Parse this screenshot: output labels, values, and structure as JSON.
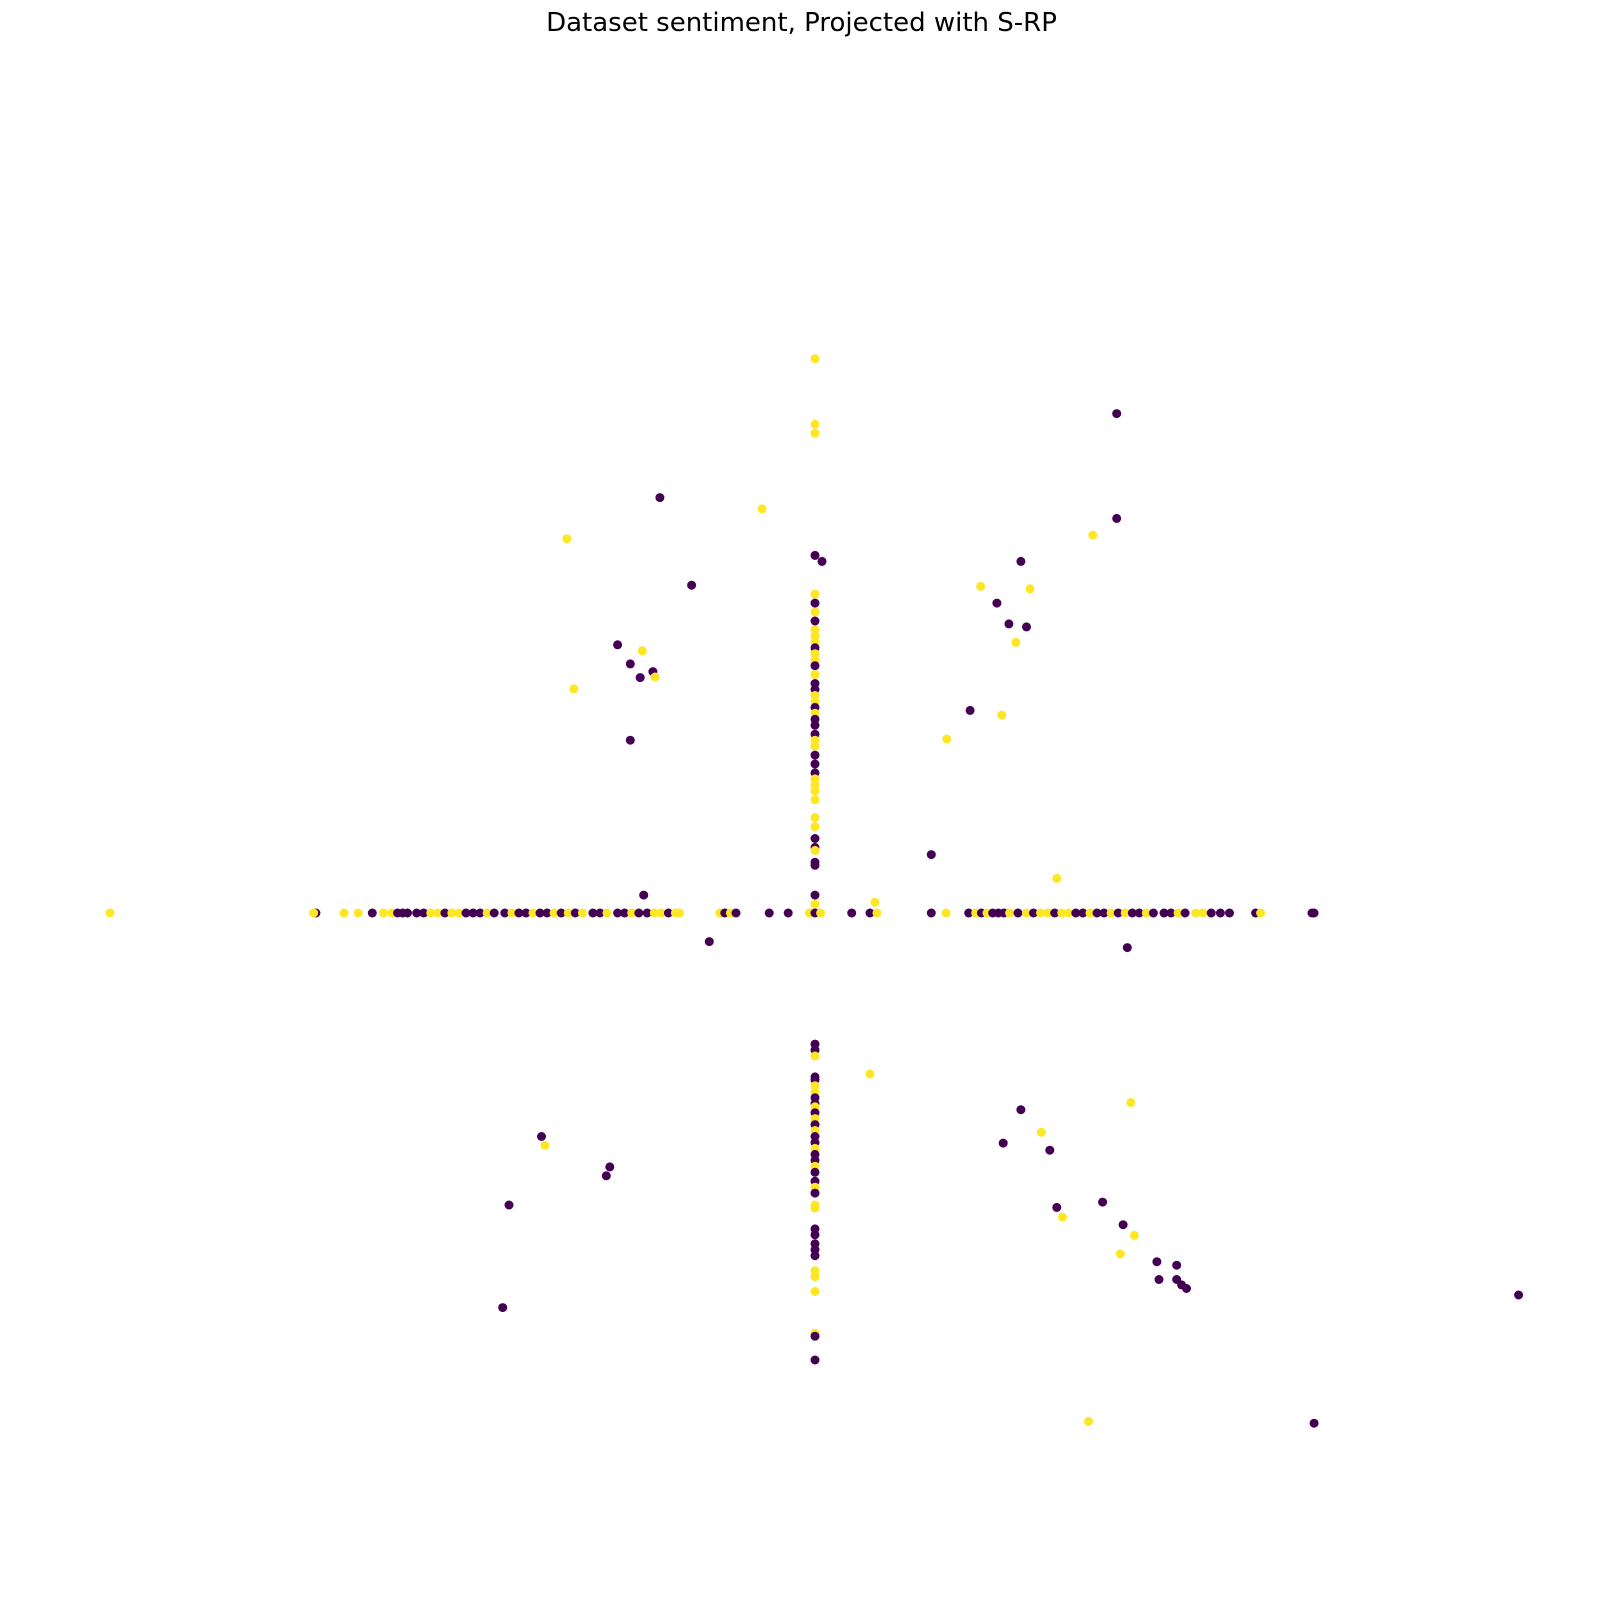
{
  "chart_data": {
    "type": "scatter",
    "title": "Dataset sentiment, Projected with S-RP",
    "xlabel": "",
    "ylabel": "",
    "axes_visible": false,
    "grid": false,
    "legend": "none",
    "colors": {
      "class_0": "#440154",
      "class_1": "#fde725"
    },
    "xlim": [
      -1.0,
      1.0
    ],
    "ylim": [
      -1.0,
      1.0
    ],
    "points": [
      {
        "x": 0.0,
        "y": 0.93,
        "c": 1
      },
      {
        "x": 0.0,
        "y": 0.82,
        "c": 1
      },
      {
        "x": 0.0,
        "y": 0.805,
        "c": 1
      },
      {
        "x": 0.0,
        "y": 0.6,
        "c": 1
      },
      {
        "x": 0.0,
        "y": 0.6,
        "c": 0
      },
      {
        "x": 0.0,
        "y": 0.535,
        "c": 1
      },
      {
        "x": 0.0,
        "y": 0.52,
        "c": 0
      },
      {
        "x": 0.0,
        "y": 0.505,
        "c": 1
      },
      {
        "x": 0.0,
        "y": 0.49,
        "c": 0
      },
      {
        "x": 0.0,
        "y": 0.475,
        "c": 1
      },
      {
        "x": 0.0,
        "y": 0.465,
        "c": 1
      },
      {
        "x": 0.0,
        "y": 0.455,
        "c": 1
      },
      {
        "x": 0.0,
        "y": 0.445,
        "c": 0
      },
      {
        "x": 0.0,
        "y": 0.435,
        "c": 1
      },
      {
        "x": 0.0,
        "y": 0.425,
        "c": 1
      },
      {
        "x": 0.0,
        "y": 0.415,
        "c": 0
      },
      {
        "x": 0.0,
        "y": 0.4,
        "c": 1
      },
      {
        "x": 0.0,
        "y": 0.385,
        "c": 0
      },
      {
        "x": 0.0,
        "y": 0.375,
        "c": 0
      },
      {
        "x": 0.0,
        "y": 0.365,
        "c": 1
      },
      {
        "x": 0.0,
        "y": 0.355,
        "c": 1
      },
      {
        "x": 0.0,
        "y": 0.345,
        "c": 0
      },
      {
        "x": 0.0,
        "y": 0.335,
        "c": 1
      },
      {
        "x": 0.0,
        "y": 0.325,
        "c": 0
      },
      {
        "x": 0.0,
        "y": 0.315,
        "c": 0
      },
      {
        "x": 0.0,
        "y": 0.3,
        "c": 0
      },
      {
        "x": 0.0,
        "y": 0.29,
        "c": 1
      },
      {
        "x": 0.0,
        "y": 0.28,
        "c": 1
      },
      {
        "x": 0.0,
        "y": 0.265,
        "c": 0
      },
      {
        "x": 0.0,
        "y": 0.25,
        "c": 0
      },
      {
        "x": 0.0,
        "y": 0.235,
        "c": 0
      },
      {
        "x": 0.0,
        "y": 0.225,
        "c": 1
      },
      {
        "x": 0.0,
        "y": 0.215,
        "c": 1
      },
      {
        "x": 0.0,
        "y": 0.205,
        "c": 1
      },
      {
        "x": 0.0,
        "y": 0.19,
        "c": 1
      },
      {
        "x": 0.0,
        "y": 0.16,
        "c": 1
      },
      {
        "x": 0.0,
        "y": 0.145,
        "c": 1
      },
      {
        "x": 0.0,
        "y": 0.125,
        "c": 0
      },
      {
        "x": 0.0,
        "y": 0.11,
        "c": 0
      },
      {
        "x": 0.0,
        "y": 0.085,
        "c": 0
      },
      {
        "x": 0.0,
        "y": 0.08,
        "c": 0
      },
      {
        "x": 0.0,
        "y": -0.22,
        "c": 0
      },
      {
        "x": 0.0,
        "y": -0.23,
        "c": 0
      },
      {
        "x": 0.0,
        "y": -0.24,
        "c": 1
      },
      {
        "x": 0.0,
        "y": -0.275,
        "c": 0
      },
      {
        "x": 0.0,
        "y": -0.28,
        "c": 0
      },
      {
        "x": 0.0,
        "y": -0.29,
        "c": 1
      },
      {
        "x": 0.0,
        "y": -0.3,
        "c": 1
      },
      {
        "x": 0.0,
        "y": -0.31,
        "c": 0
      },
      {
        "x": 0.0,
        "y": -0.32,
        "c": 0
      },
      {
        "x": 0.0,
        "y": -0.325,
        "c": 1
      },
      {
        "x": 0.0,
        "y": -0.335,
        "c": 0
      },
      {
        "x": 0.0,
        "y": -0.345,
        "c": 1
      },
      {
        "x": 0.0,
        "y": -0.355,
        "c": 0
      },
      {
        "x": 0.0,
        "y": -0.365,
        "c": 1
      },
      {
        "x": 0.0,
        "y": -0.375,
        "c": 0
      },
      {
        "x": 0.0,
        "y": -0.385,
        "c": 0
      },
      {
        "x": 0.0,
        "y": -0.395,
        "c": 1
      },
      {
        "x": 0.0,
        "y": -0.405,
        "c": 0
      },
      {
        "x": 0.0,
        "y": -0.415,
        "c": 0
      },
      {
        "x": 0.0,
        "y": -0.425,
        "c": 1
      },
      {
        "x": 0.0,
        "y": -0.435,
        "c": 0
      },
      {
        "x": 0.0,
        "y": -0.45,
        "c": 0
      },
      {
        "x": 0.0,
        "y": -0.46,
        "c": 1
      },
      {
        "x": 0.0,
        "y": -0.47,
        "c": 0
      },
      {
        "x": 0.0,
        "y": -0.49,
        "c": 1
      },
      {
        "x": 0.0,
        "y": -0.495,
        "c": 1
      },
      {
        "x": 0.0,
        "y": -0.53,
        "c": 0
      },
      {
        "x": 0.0,
        "y": -0.54,
        "c": 0
      },
      {
        "x": 0.0,
        "y": -0.555,
        "c": 0
      },
      {
        "x": 0.0,
        "y": -0.565,
        "c": 0
      },
      {
        "x": 0.0,
        "y": -0.575,
        "c": 0
      },
      {
        "x": 0.0,
        "y": -0.6,
        "c": 1
      },
      {
        "x": 0.0,
        "y": -0.61,
        "c": 1
      },
      {
        "x": 0.0,
        "y": -0.635,
        "c": 1
      },
      {
        "x": 0.0,
        "y": -0.705,
        "c": 1
      },
      {
        "x": 0.0,
        "y": -0.71,
        "c": 0
      },
      {
        "x": 0.0,
        "y": -0.75,
        "c": 0
      },
      {
        "x": 0.0,
        "y": 0.105,
        "c": 1
      },
      {
        "x": 0.0,
        "y": 0.03,
        "c": 0
      },
      {
        "x": 0.0,
        "y": 0.015,
        "c": 1
      },
      {
        "x": -1.0,
        "y": 0.0,
        "c": 1
      },
      {
        "x": -0.708,
        "y": 0.0,
        "c": 0
      },
      {
        "x": -0.711,
        "y": 0.0,
        "c": 1
      },
      {
        "x": -0.668,
        "y": 0.0,
        "c": 1
      },
      {
        "x": -0.648,
        "y": 0.0,
        "c": 1
      },
      {
        "x": -0.628,
        "y": 0.0,
        "c": 0
      },
      {
        "x": -0.612,
        "y": 0.0,
        "c": 1
      },
      {
        "x": -0.6,
        "y": 0.0,
        "c": 1
      },
      {
        "x": -0.592,
        "y": 0.0,
        "c": 0
      },
      {
        "x": -0.585,
        "y": 0.0,
        "c": 0
      },
      {
        "x": -0.578,
        "y": 0.0,
        "c": 0
      },
      {
        "x": -0.565,
        "y": 0.0,
        "c": 0
      },
      {
        "x": -0.555,
        "y": 0.0,
        "c": 0
      },
      {
        "x": -0.545,
        "y": 0.0,
        "c": 1
      },
      {
        "x": -0.535,
        "y": 0.0,
        "c": 1
      },
      {
        "x": -0.525,
        "y": 0.0,
        "c": 0
      },
      {
        "x": -0.515,
        "y": 0.0,
        "c": 1
      },
      {
        "x": -0.505,
        "y": 0.0,
        "c": 1
      },
      {
        "x": -0.495,
        "y": 0.0,
        "c": 0
      },
      {
        "x": -0.485,
        "y": 0.0,
        "c": 0
      },
      {
        "x": -0.475,
        "y": 0.0,
        "c": 0
      },
      {
        "x": -0.465,
        "y": 0.0,
        "c": 1
      },
      {
        "x": -0.455,
        "y": 0.0,
        "c": 0
      },
      {
        "x": -0.44,
        "y": 0.0,
        "c": 0
      },
      {
        "x": -0.43,
        "y": 0.0,
        "c": 1
      },
      {
        "x": -0.42,
        "y": 0.0,
        "c": 0
      },
      {
        "x": -0.41,
        "y": 0.0,
        "c": 0
      },
      {
        "x": -0.4,
        "y": 0.0,
        "c": 1
      },
      {
        "x": -0.39,
        "y": 0.0,
        "c": 0
      },
      {
        "x": -0.38,
        "y": 0.0,
        "c": 0
      },
      {
        "x": -0.37,
        "y": 0.0,
        "c": 1
      },
      {
        "x": -0.36,
        "y": 0.0,
        "c": 0
      },
      {
        "x": -0.35,
        "y": 0.0,
        "c": 1
      },
      {
        "x": -0.34,
        "y": 0.0,
        "c": 0
      },
      {
        "x": -0.33,
        "y": 0.0,
        "c": 1
      },
      {
        "x": -0.315,
        "y": 0.0,
        "c": 0
      },
      {
        "x": -0.305,
        "y": 0.0,
        "c": 0
      },
      {
        "x": -0.295,
        "y": 0.0,
        "c": 1
      },
      {
        "x": -0.28,
        "y": 0.0,
        "c": 0
      },
      {
        "x": -0.27,
        "y": 0.0,
        "c": 0
      },
      {
        "x": -0.26,
        "y": 0.0,
        "c": 1
      },
      {
        "x": -0.25,
        "y": 0.0,
        "c": 0
      },
      {
        "x": -0.238,
        "y": 0.0,
        "c": 0
      },
      {
        "x": -0.228,
        "y": 0.0,
        "c": 1
      },
      {
        "x": -0.218,
        "y": 0.0,
        "c": 1
      },
      {
        "x": -0.208,
        "y": 0.0,
        "c": 0
      },
      {
        "x": -0.198,
        "y": 0.0,
        "c": 1
      },
      {
        "x": -0.192,
        "y": 0.0,
        "c": 1
      },
      {
        "x": -0.135,
        "y": 0.0,
        "c": 1
      },
      {
        "x": -0.128,
        "y": 0.0,
        "c": 0
      },
      {
        "x": -0.12,
        "y": 0.0,
        "c": 1
      },
      {
        "x": -0.112,
        "y": 0.0,
        "c": 0
      },
      {
        "x": -0.065,
        "y": 0.0,
        "c": 0
      },
      {
        "x": -0.038,
        "y": 0.0,
        "c": 0
      },
      {
        "x": -0.008,
        "y": 0.0,
        "c": 1
      },
      {
        "x": 0.0,
        "y": 0.0,
        "c": 0
      },
      {
        "x": 0.008,
        "y": 0.0,
        "c": 1
      },
      {
        "x": 0.052,
        "y": 0.0,
        "c": 0
      },
      {
        "x": 0.078,
        "y": 0.0,
        "c": 0
      },
      {
        "x": 0.088,
        "y": 0.0,
        "c": 1
      },
      {
        "x": 0.165,
        "y": 0.0,
        "c": 0
      },
      {
        "x": 0.186,
        "y": 0.0,
        "c": 1
      },
      {
        "x": 0.218,
        "y": 0.0,
        "c": 0
      },
      {
        "x": 0.228,
        "y": 0.0,
        "c": 1
      },
      {
        "x": 0.236,
        "y": 0.0,
        "c": 0
      },
      {
        "x": 0.244,
        "y": 0.0,
        "c": 1
      },
      {
        "x": 0.252,
        "y": 0.0,
        "c": 0
      },
      {
        "x": 0.26,
        "y": 0.0,
        "c": 0
      },
      {
        "x": 0.268,
        "y": 0.0,
        "c": 0
      },
      {
        "x": 0.276,
        "y": 0.0,
        "c": 1
      },
      {
        "x": 0.288,
        "y": 0.0,
        "c": 0
      },
      {
        "x": 0.3,
        "y": 0.0,
        "c": 1
      },
      {
        "x": 0.31,
        "y": 0.0,
        "c": 0
      },
      {
        "x": 0.32,
        "y": 0.0,
        "c": 1
      },
      {
        "x": 0.33,
        "y": 0.0,
        "c": 1
      },
      {
        "x": 0.34,
        "y": 0.0,
        "c": 0
      },
      {
        "x": 0.35,
        "y": 0.0,
        "c": 1
      },
      {
        "x": 0.36,
        "y": 0.0,
        "c": 1
      },
      {
        "x": 0.37,
        "y": 0.0,
        "c": 0
      },
      {
        "x": 0.38,
        "y": 0.0,
        "c": 0
      },
      {
        "x": 0.39,
        "y": 0.0,
        "c": 1
      },
      {
        "x": 0.4,
        "y": 0.0,
        "c": 0
      },
      {
        "x": 0.41,
        "y": 0.0,
        "c": 0
      },
      {
        "x": 0.42,
        "y": 0.0,
        "c": 1
      },
      {
        "x": 0.43,
        "y": 0.0,
        "c": 0
      },
      {
        "x": 0.44,
        "y": 0.0,
        "c": 1
      },
      {
        "x": 0.45,
        "y": 0.0,
        "c": 0
      },
      {
        "x": 0.46,
        "y": 0.0,
        "c": 0
      },
      {
        "x": 0.47,
        "y": 0.0,
        "c": 1
      },
      {
        "x": 0.48,
        "y": 0.0,
        "c": 0
      },
      {
        "x": 0.495,
        "y": 0.0,
        "c": 0
      },
      {
        "x": 0.505,
        "y": 0.0,
        "c": 0
      },
      {
        "x": 0.515,
        "y": 0.0,
        "c": 1
      },
      {
        "x": 0.525,
        "y": 0.0,
        "c": 0
      },
      {
        "x": 0.54,
        "y": 0.0,
        "c": 1
      },
      {
        "x": 0.55,
        "y": 0.0,
        "c": 1
      },
      {
        "x": 0.562,
        "y": 0.0,
        "c": 0
      },
      {
        "x": 0.575,
        "y": 0.0,
        "c": 0
      },
      {
        "x": 0.588,
        "y": 0.0,
        "c": 0
      },
      {
        "x": 0.625,
        "y": 0.0,
        "c": 0
      },
      {
        "x": 0.632,
        "y": 0.0,
        "c": 1
      },
      {
        "x": 0.705,
        "y": 0.0,
        "c": 0
      },
      {
        "x": 0.708,
        "y": 0.0,
        "c": 0
      },
      {
        "x": -0.22,
        "y": 0.697,
        "c": 0
      },
      {
        "x": -0.075,
        "y": 0.678,
        "c": 1
      },
      {
        "x": -0.352,
        "y": 0.628,
        "c": 1
      },
      {
        "x": -0.175,
        "y": 0.55,
        "c": 0
      },
      {
        "x": -0.28,
        "y": 0.45,
        "c": 0
      },
      {
        "x": -0.245,
        "y": 0.44,
        "c": 1
      },
      {
        "x": -0.262,
        "y": 0.418,
        "c": 0
      },
      {
        "x": -0.23,
        "y": 0.405,
        "c": 0
      },
      {
        "x": -0.227,
        "y": 0.396,
        "c": 1
      },
      {
        "x": -0.248,
        "y": 0.395,
        "c": 0
      },
      {
        "x": -0.342,
        "y": 0.376,
        "c": 1
      },
      {
        "x": -0.262,
        "y": 0.29,
        "c": 0
      },
      {
        "x": 0.428,
        "y": 0.838,
        "c": 0
      },
      {
        "x": 0.428,
        "y": 0.662,
        "c": 0
      },
      {
        "x": 0.394,
        "y": 0.634,
        "c": 1
      },
      {
        "x": 0.292,
        "y": 0.59,
        "c": 0
      },
      {
        "x": 0.235,
        "y": 0.548,
        "c": 1
      },
      {
        "x": 0.305,
        "y": 0.544,
        "c": 1
      },
      {
        "x": 0.258,
        "y": 0.52,
        "c": 0
      },
      {
        "x": 0.275,
        "y": 0.485,
        "c": 0
      },
      {
        "x": 0.3,
        "y": 0.48,
        "c": 0
      },
      {
        "x": 0.285,
        "y": 0.454,
        "c": 1
      },
      {
        "x": 0.22,
        "y": 0.34,
        "c": 0
      },
      {
        "x": 0.265,
        "y": 0.332,
        "c": 1
      },
      {
        "x": 0.187,
        "y": 0.292,
        "c": 1
      },
      {
        "x": 0.01,
        "y": 0.59,
        "c": 0
      },
      {
        "x": 0.165,
        "y": 0.098,
        "c": 0
      },
      {
        "x": 0.343,
        "y": 0.058,
        "c": 1
      },
      {
        "x": -0.243,
        "y": 0.03,
        "c": 0
      },
      {
        "x": 0.085,
        "y": 0.018,
        "c": 1
      },
      {
        "x": -0.15,
        "y": -0.048,
        "c": 0
      },
      {
        "x": 0.443,
        "y": -0.058,
        "c": 0
      },
      {
        "x": 0.078,
        "y": -0.27,
        "c": 1
      },
      {
        "x": 0.448,
        "y": -0.318,
        "c": 1
      },
      {
        "x": 0.292,
        "y": -0.33,
        "c": 0
      },
      {
        "x": 0.321,
        "y": -0.368,
        "c": 1
      },
      {
        "x": 0.267,
        "y": -0.386,
        "c": 0
      },
      {
        "x": 0.333,
        "y": -0.398,
        "c": 0
      },
      {
        "x": 0.408,
        "y": -0.485,
        "c": 0
      },
      {
        "x": 0.343,
        "y": -0.494,
        "c": 0
      },
      {
        "x": 0.351,
        "y": -0.51,
        "c": 1
      },
      {
        "x": 0.437,
        "y": -0.523,
        "c": 0
      },
      {
        "x": 0.453,
        "y": -0.541,
        "c": 1
      },
      {
        "x": 0.433,
        "y": -0.572,
        "c": 1
      },
      {
        "x": 0.485,
        "y": -0.585,
        "c": 0
      },
      {
        "x": 0.513,
        "y": -0.591,
        "c": 0
      },
      {
        "x": 0.488,
        "y": -0.615,
        "c": 0
      },
      {
        "x": 0.513,
        "y": -0.615,
        "c": 0
      },
      {
        "x": 0.52,
        "y": -0.624,
        "c": 0
      },
      {
        "x": 0.527,
        "y": -0.63,
        "c": 0
      },
      {
        "x": 0.998,
        "y": -0.641,
        "c": 0
      },
      {
        "x": 0.388,
        "y": -0.853,
        "c": 1
      },
      {
        "x": 0.708,
        "y": -0.856,
        "c": 0
      },
      {
        "x": -0.388,
        "y": -0.375,
        "c": 0
      },
      {
        "x": -0.383,
        "y": -0.39,
        "c": 1
      },
      {
        "x": -0.291,
        "y": -0.426,
        "c": 0
      },
      {
        "x": -0.296,
        "y": -0.441,
        "c": 0
      },
      {
        "x": -0.434,
        "y": -0.49,
        "c": 0
      },
      {
        "x": -0.443,
        "y": -0.662,
        "c": 0
      }
    ]
  }
}
